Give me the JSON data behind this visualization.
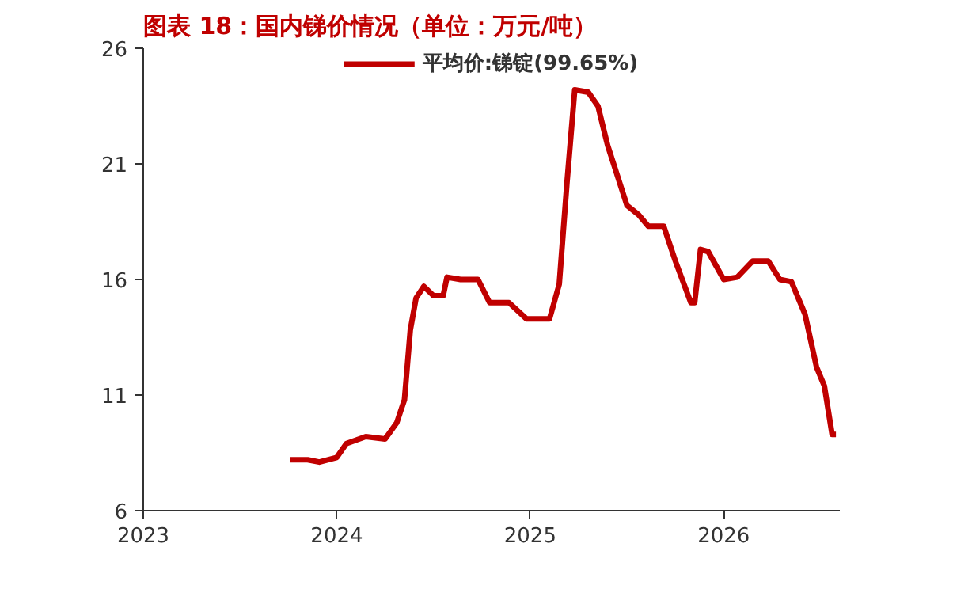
{
  "chart_data": {
    "type": "line",
    "title": "图表 18：国内锑价情况（单位：万元/吨）",
    "x": [
      2023.76,
      2023.85,
      2023.91,
      2024.0,
      2024.05,
      2024.15,
      2024.25,
      2024.31,
      2024.35,
      2024.38,
      2024.41,
      2024.45,
      2024.5,
      2024.55,
      2024.57,
      2024.64,
      2024.73,
      2024.79,
      2024.89,
      2024.98,
      2025.1,
      2025.15,
      2025.19,
      2025.23,
      2025.3,
      2025.35,
      2025.4,
      2025.5,
      2025.56,
      2025.61,
      2025.69,
      2025.75,
      2025.83,
      2025.85,
      2025.88,
      2025.92,
      2026.0,
      2026.07,
      2026.15,
      2026.23,
      2026.29,
      2026.35,
      2026.42,
      2026.48,
      2026.52,
      2026.56,
      2026.58
    ],
    "series": [
      {
        "name": "平均价:锑锭(99.65%)",
        "color": "#c00000",
        "values": [
          8.2,
          8.2,
          8.1,
          8.3,
          8.9,
          9.2,
          9.1,
          9.8,
          10.8,
          13.8,
          15.2,
          15.7,
          15.3,
          15.3,
          16.1,
          16.0,
          16.0,
          15.0,
          15.0,
          14.3,
          14.3,
          15.8,
          20.2,
          24.2,
          24.1,
          23.5,
          21.8,
          19.2,
          18.8,
          18.3,
          18.3,
          16.8,
          15.0,
          15.0,
          17.3,
          17.2,
          16.0,
          16.1,
          16.8,
          16.8,
          16.0,
          15.9,
          14.5,
          12.2,
          11.4,
          9.3,
          9.3
        ]
      }
    ],
    "xlim": [
      2023,
      2026.6
    ],
    "xticks": [
      2023,
      2024,
      2025,
      2026
    ],
    "ylim": [
      6,
      26
    ],
    "yticks": [
      6,
      11,
      16,
      21,
      26
    ],
    "grid": false,
    "legend": "top",
    "marker": "none",
    "line_style": "solid"
  }
}
